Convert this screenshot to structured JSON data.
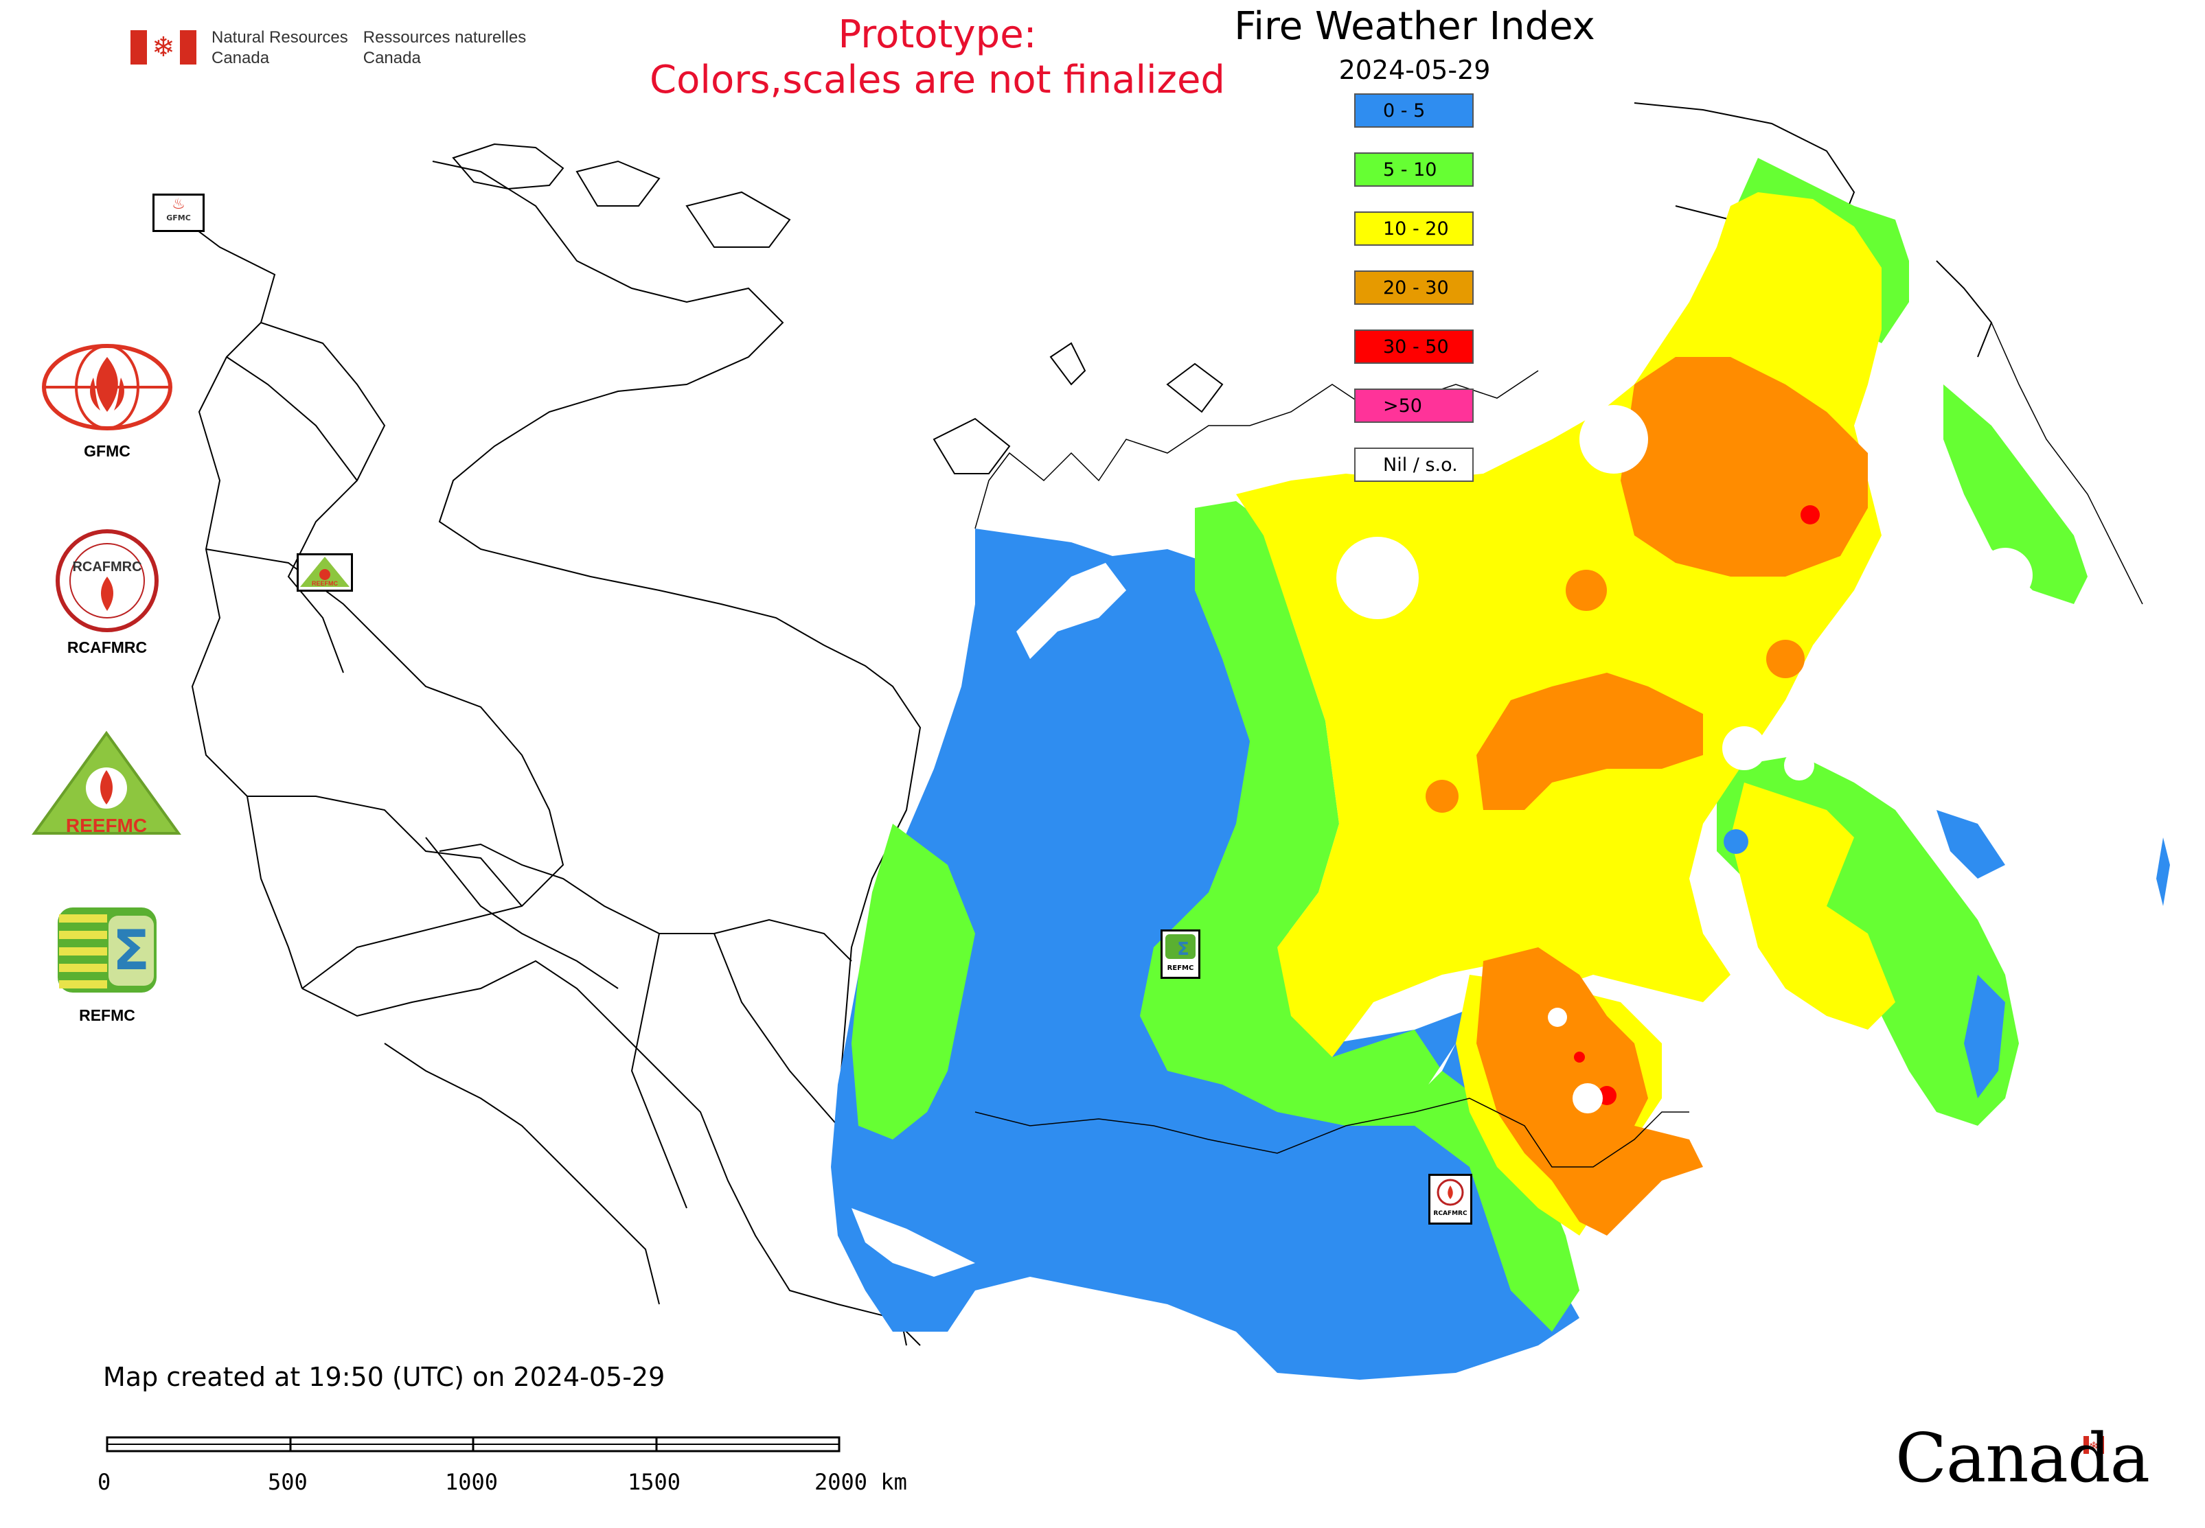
{
  "header": {
    "dept_en_line1": "Natural Resources",
    "dept_en_line2": "Canada",
    "dept_fr_line1": "Ressources naturelles",
    "dept_fr_line2": "Canada",
    "prototype_line1": "Prototype:",
    "prototype_line2": "Colors,scales are not finalized",
    "title": "Fire Weather Index",
    "date": "2024-05-29"
  },
  "legend": [
    {
      "label": "0 - 5",
      "color": "#2f8df0"
    },
    {
      "label": "5 - 10",
      "color": "#66ff33"
    },
    {
      "label": "10 - 20",
      "color": "#ffff00"
    },
    {
      "label": "20 - 30",
      "color": "#e69a00"
    },
    {
      "label": "30 - 50",
      "color": "#ff0000"
    },
    {
      "label": ">50",
      "color": "#ff3399"
    },
    {
      "label": "Nil / s.o.",
      "color": "#ffffff"
    }
  ],
  "logos": [
    {
      "name": "gfmc-logo",
      "label": "GFMC"
    },
    {
      "name": "rcafmrc-logo",
      "label": "RCAFMRC"
    },
    {
      "name": "reefmc-logo",
      "label": "REEFMC",
      "inner_text": "REEFMC"
    },
    {
      "name": "refmc-logo",
      "label": "REFMC"
    }
  ],
  "map_markers": {
    "gfmc": "GFMC",
    "reefmc": "REEFMC",
    "refmc": "REFMC",
    "rcafmrc": "RCAFMRC"
  },
  "footer": {
    "created": "Map created at 19:50 (UTC) on 2024-05-29",
    "scale_labels": [
      "0",
      "500",
      "1000",
      "1500",
      "2000 km"
    ],
    "canada_wordmark": "Canada"
  }
}
